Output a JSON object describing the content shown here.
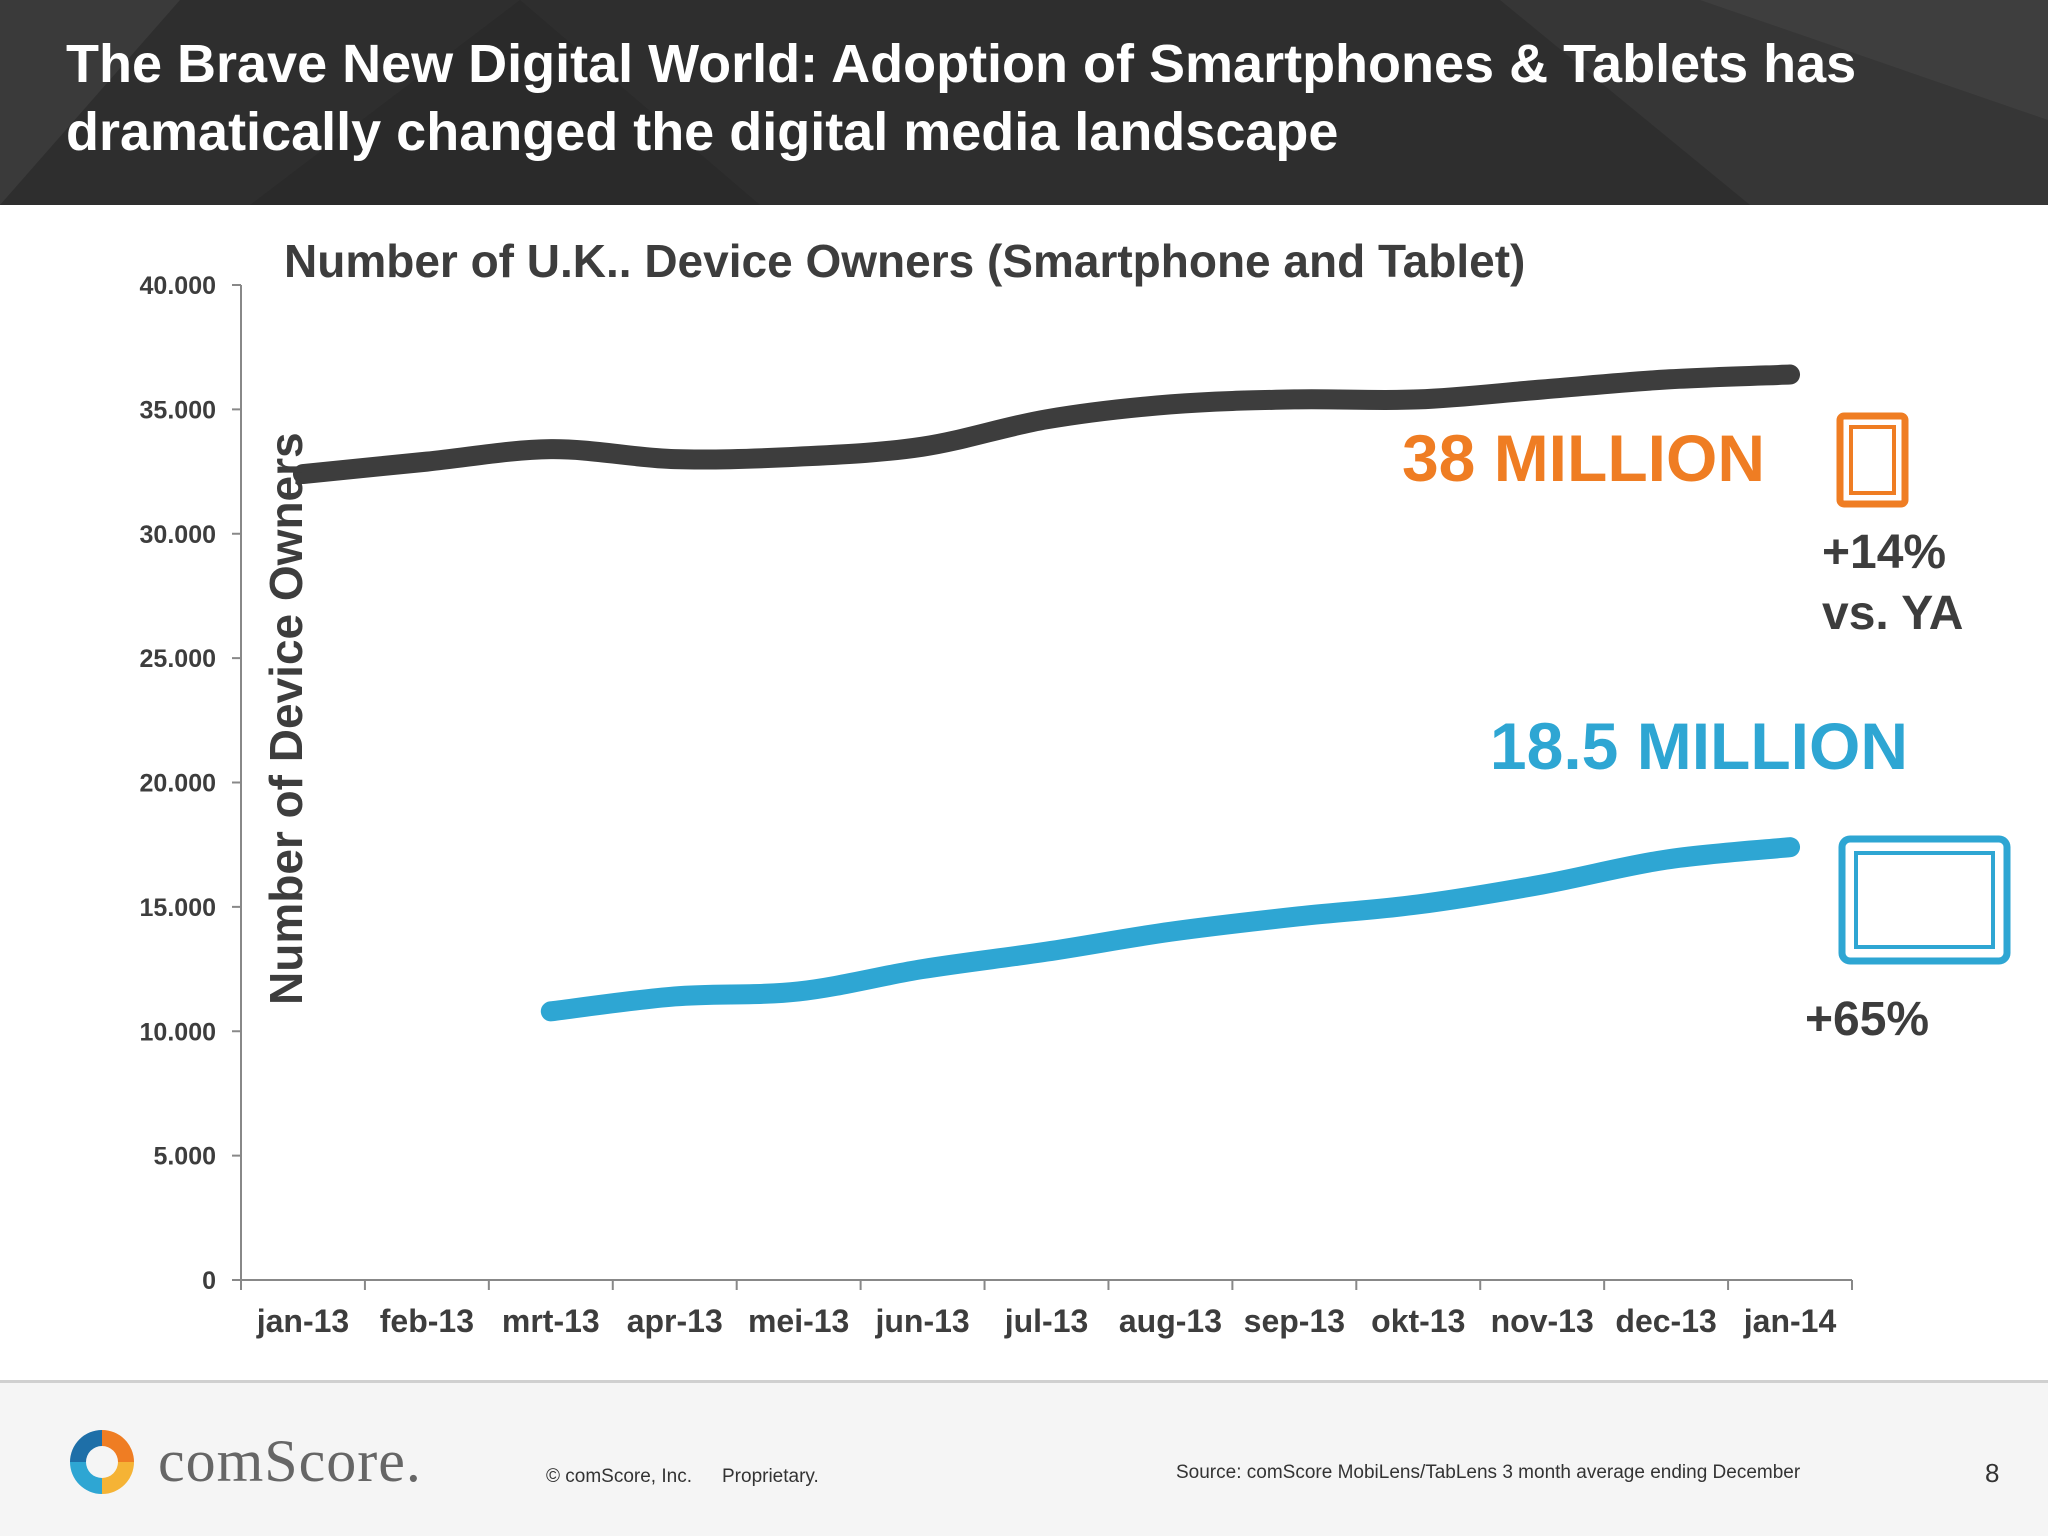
{
  "header": {
    "title_line1": "The Brave New Digital World: Adoption of Smartphones & Tablets has",
    "title_line2": "dramatically changed the digital media landscape"
  },
  "chart_data": {
    "type": "line",
    "title": "Number of U.K.. Device Owners (Smartphone and Tablet)",
    "xlabel": "",
    "ylabel": "Number of Device Owners",
    "categories": [
      "jan-13",
      "feb-13",
      "mrt-13",
      "apr-13",
      "mei-13",
      "jun-13",
      "jul-13",
      "aug-13",
      "sep-13",
      "okt-13",
      "nov-13",
      "dec-13",
      "jan-14"
    ],
    "ylim": [
      0,
      40000
    ],
    "yticks": [
      0,
      5000,
      10000,
      15000,
      20000,
      25000,
      30000,
      35000,
      40000
    ],
    "ytick_labels": [
      "0",
      "5.000",
      "10.000",
      "15.000",
      "20.000",
      "25.000",
      "30.000",
      "35.000",
      "40.000"
    ],
    "series": [
      {
        "color": "#3d3d3d",
        "values": [
          32400,
          32900,
          33400,
          33000,
          33100,
          33500,
          34600,
          35200,
          35400,
          35400,
          35800,
          36200,
          36400
        ]
      },
      {
        "color": "#2ea6d3",
        "values": [
          null,
          null,
          10800,
          11400,
          11600,
          12500,
          13200,
          14000,
          14600,
          15100,
          15900,
          16900,
          17400
        ]
      }
    ],
    "annotations": {
      "smartphone_total": "38 MILLION",
      "smartphone_growth_line1": "+14%",
      "smartphone_growth_line2": "vs. YA",
      "tablet_total": "18.5 MILLION",
      "tablet_growth": "+65%"
    },
    "colors": {
      "smartphone_accent": "#ef7d23",
      "tablet_accent": "#2ea6d3",
      "axis": "#888888",
      "text": "#3d3d3d"
    },
    "icons": {
      "smartphone": "smartphone-icon",
      "tablet": "tablet-icon"
    }
  },
  "footer": {
    "brand": "comScore.",
    "copyright": "© comScore, Inc.",
    "proprietary": "Proprietary.",
    "source": "Source: comScore MobiLens/TabLens 3 month average ending December",
    "page_number": "8"
  }
}
